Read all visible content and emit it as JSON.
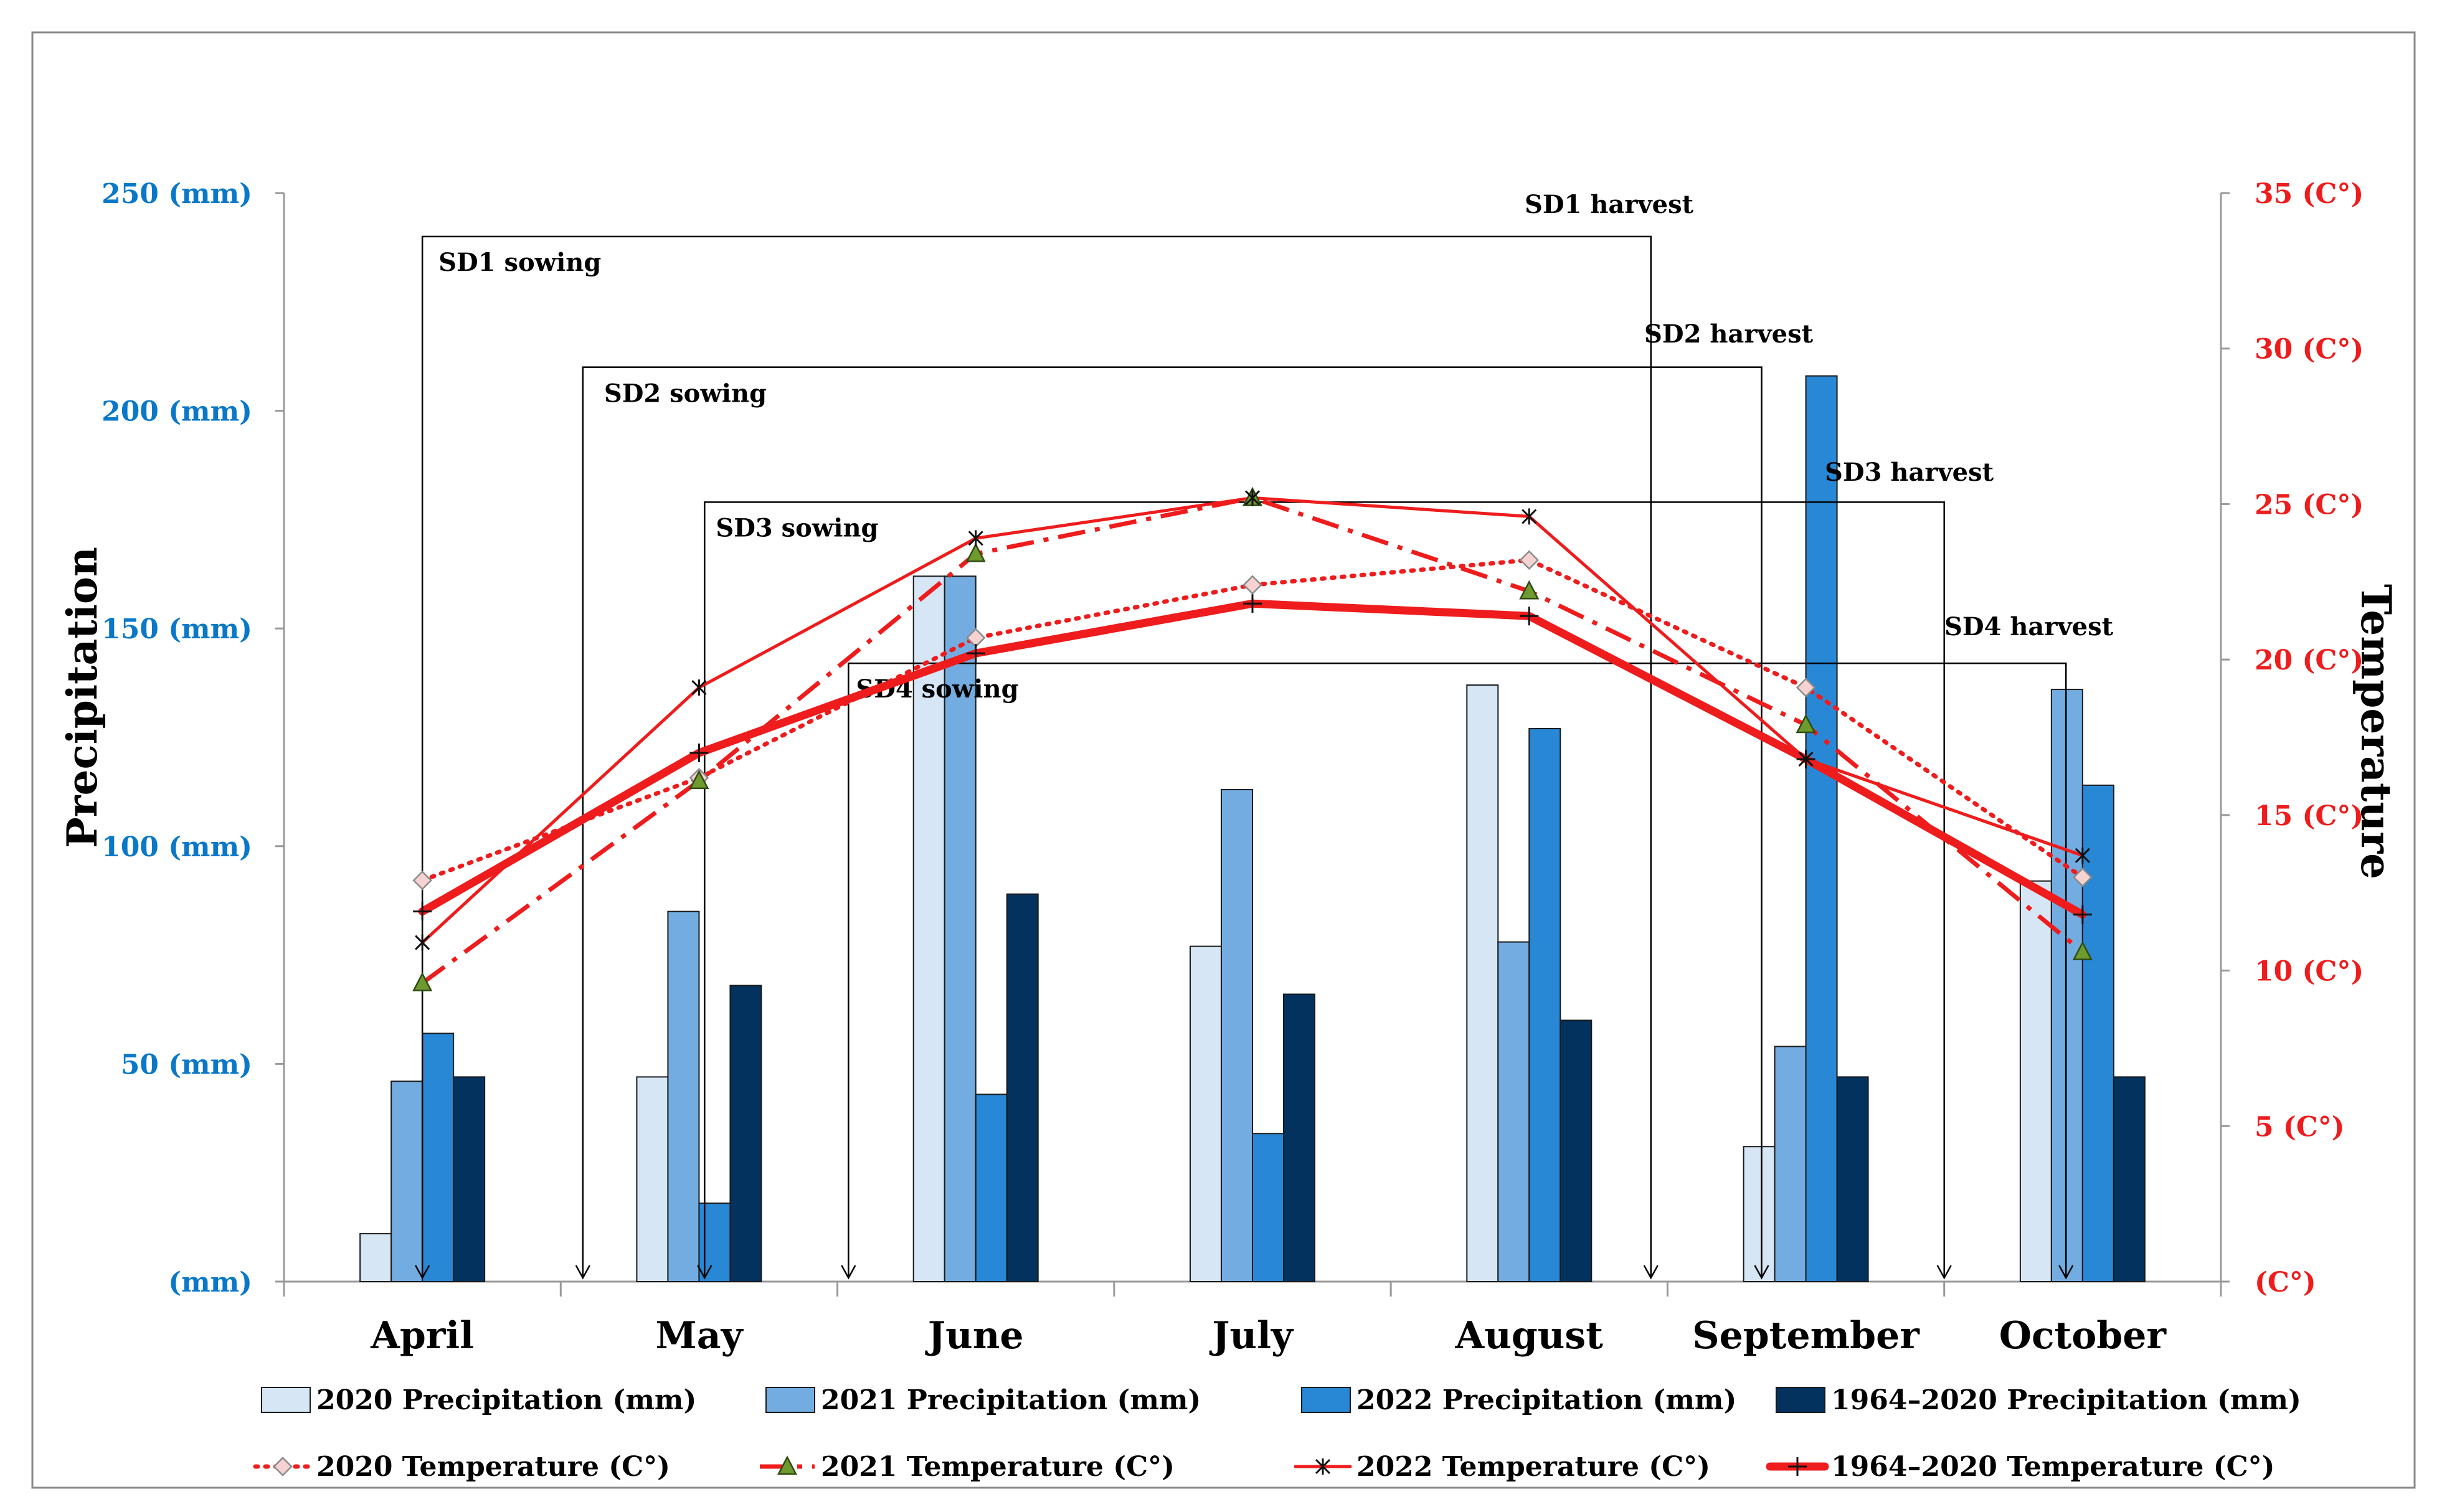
{
  "chart_data": {
    "type": "bar",
    "categories": [
      "April",
      "May",
      "June",
      "July",
      "August",
      "September",
      "October"
    ],
    "bar_series": [
      {
        "name": "2020 Precipitation (mm)",
        "color": "#d6e6f5",
        "values": [
          11,
          47,
          162,
          77,
          137,
          31,
          92
        ]
      },
      {
        "name": "2021 Precipitation (mm)",
        "color": "#73ace0",
        "values": [
          46,
          85,
          162,
          113,
          78,
          54,
          136
        ]
      },
      {
        "name": "2022 Precipitation (mm)",
        "color": "#2888d6",
        "values": [
          57,
          18,
          43,
          34,
          127,
          208,
          114
        ]
      },
      {
        "name": "1964–2020 Precipitation  (mm)",
        "color": "#03325e",
        "values": [
          47,
          68,
          89,
          66,
          60,
          47,
          47
        ]
      }
    ],
    "line_series": [
      {
        "name": "2020 Temperature (C°)",
        "style": "dotted",
        "marker": "diamond",
        "color": "#ee1c1c",
        "values": [
          12.9,
          16.2,
          20.7,
          22.4,
          23.2,
          19.1,
          13
        ]
      },
      {
        "name": "2021 Temperature (C°)",
        "style": "dashdot",
        "marker": "triangle",
        "color": "#ee1c1c",
        "values": [
          9.6,
          16.1,
          23.4,
          25.2,
          22.2,
          17.9,
          10.6
        ]
      },
      {
        "name": "2022 Temperature (C°)",
        "style": "solid",
        "marker": "star",
        "color": "#ee1c1c",
        "values": [
          10.9,
          19.1,
          23.9,
          25.2,
          24.6,
          16.8,
          13.7
        ]
      },
      {
        "name": "1964–2020 Temperature (C°)",
        "style": "thick",
        "marker": "plus",
        "color": "#ee1c1c",
        "values": [
          11.9,
          17,
          20.2,
          21.8,
          21.4,
          16.8,
          11.8
        ]
      }
    ],
    "y_left": {
      "label": "Precipitation",
      "range": [
        0,
        250
      ],
      "ticks": [
        0,
        50,
        100,
        150,
        200,
        250
      ],
      "tick_labels": [
        "(mm)",
        "50 (mm)",
        "100 (mm)",
        "150 (mm)",
        "200 (mm)",
        "250 (mm)"
      ],
      "color": "#0a78c8"
    },
    "y_right": {
      "label": "Temperature",
      "range": [
        0,
        35
      ],
      "ticks": [
        0,
        5,
        10,
        15,
        20,
        25,
        30,
        35
      ],
      "tick_labels": [
        "(C°)",
        "5 (C°)",
        "10 (C°)",
        "15 (C°)",
        "20 (C°)",
        "25 (C°)",
        "30 (C°)",
        "35 (C°)"
      ],
      "color": "#ee1c1c"
    },
    "sowing_harvest": [
      {
        "sowing_label": "SD1 sowing",
        "harvest_label": "SD1 harvest",
        "start_month": 0,
        "end_month": 4.44,
        "level_mm": 240
      },
      {
        "sowing_label": "SD2 sowing",
        "harvest_label": "SD2 harvest",
        "start_month": 0.58,
        "end_month": 4.84,
        "level_mm": 210
      },
      {
        "sowing_label": "SD3 sowing",
        "harvest_label": "SD3 harvest",
        "start_month": 1.02,
        "end_month": 5.5,
        "level_mm": 179
      },
      {
        "sowing_label": "SD4 sowing",
        "harvest_label": "SD4 harvest",
        "start_month": 1.54,
        "end_month": 5.94,
        "level_mm": 142
      }
    ],
    "legend_position": "bottom"
  }
}
